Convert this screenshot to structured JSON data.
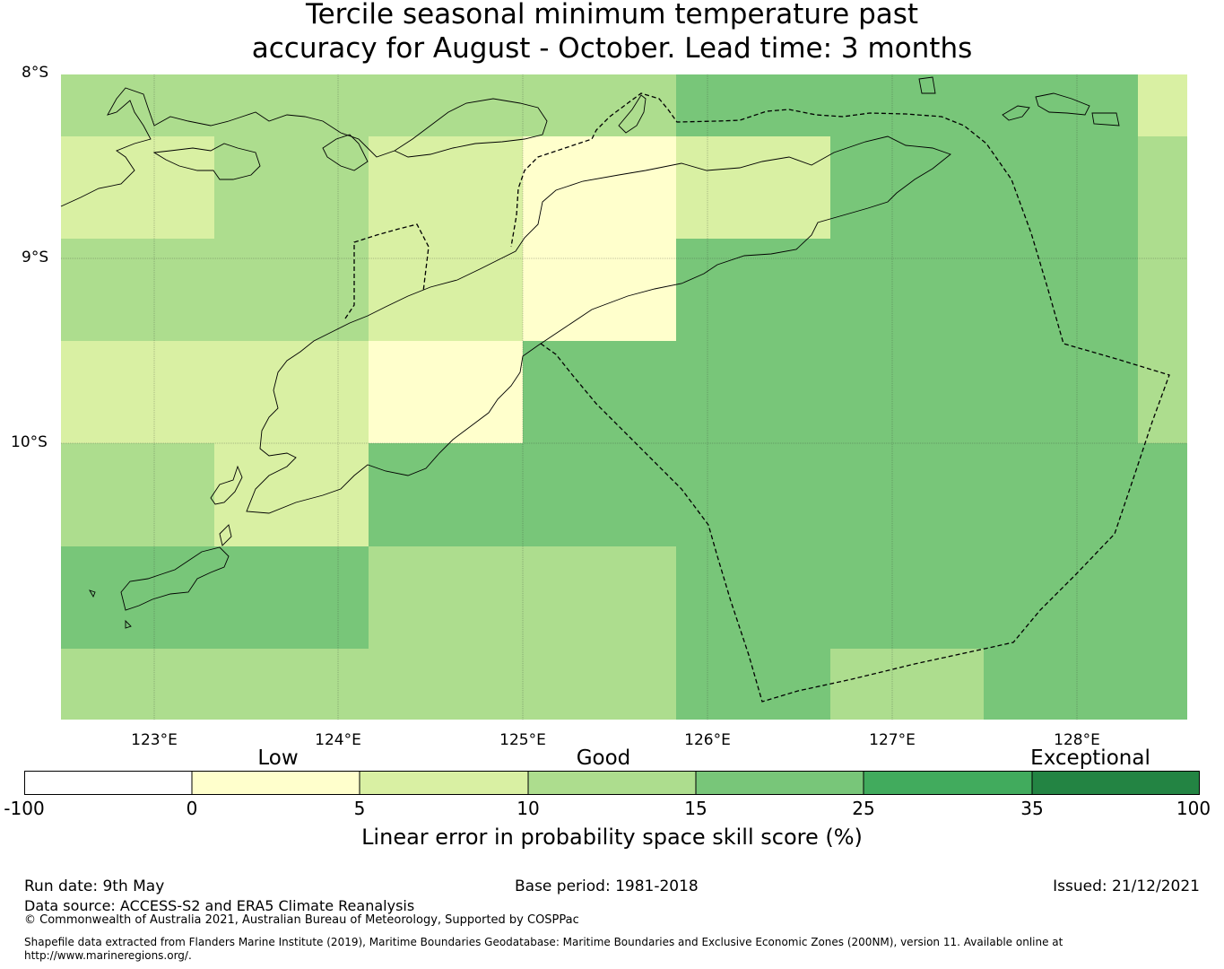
{
  "title": {
    "line1": "Tercile seasonal minimum temperature past",
    "line2": "accuracy for August - October. Lead time: 3 months"
  },
  "map": {
    "lat_labels": [
      "8°S",
      "9°S",
      "10°S"
    ],
    "lon_labels": [
      "123°E",
      "124°E",
      "125°E",
      "126°E",
      "127°E",
      "128°E"
    ]
  },
  "colors": {
    "bin_0": "#ffffff",
    "bin_1": "#ffffcc",
    "bin_2": "#d9f0a3",
    "bin_3": "#addd8e",
    "bin_4": "#78c679",
    "bin_5": "#41ab5d",
    "bin_6": "#238443"
  },
  "legend": {
    "category_labels": [
      "Low",
      "Good",
      "Exceptional"
    ],
    "ticks": [
      "-100",
      "0",
      "5",
      "10",
      "15",
      "25",
      "35",
      "100"
    ],
    "caption": "Linear error in probability space skill score (%)"
  },
  "footer": {
    "run_date": "Run date: 9th May",
    "base_period": "Base period: 1981-2018",
    "issued": "Issued: 21/12/2021",
    "data_source": "Data source: ACCESS-S2 and ERA5 Climate Reanalysis",
    "copyright": "© Commonwealth of Australia 2021, Australian Bureau of Meteorology, Supported by COSPPac",
    "shapefile": "Shapefile data extracted from Flanders Marine Institute (2019), Maritime Boundaries Geodatabase: Maritime Boundaries and Exclusive Economic Zones (200NM), version 11. Available online at",
    "url": "http://www.marineregions.org/."
  }
}
